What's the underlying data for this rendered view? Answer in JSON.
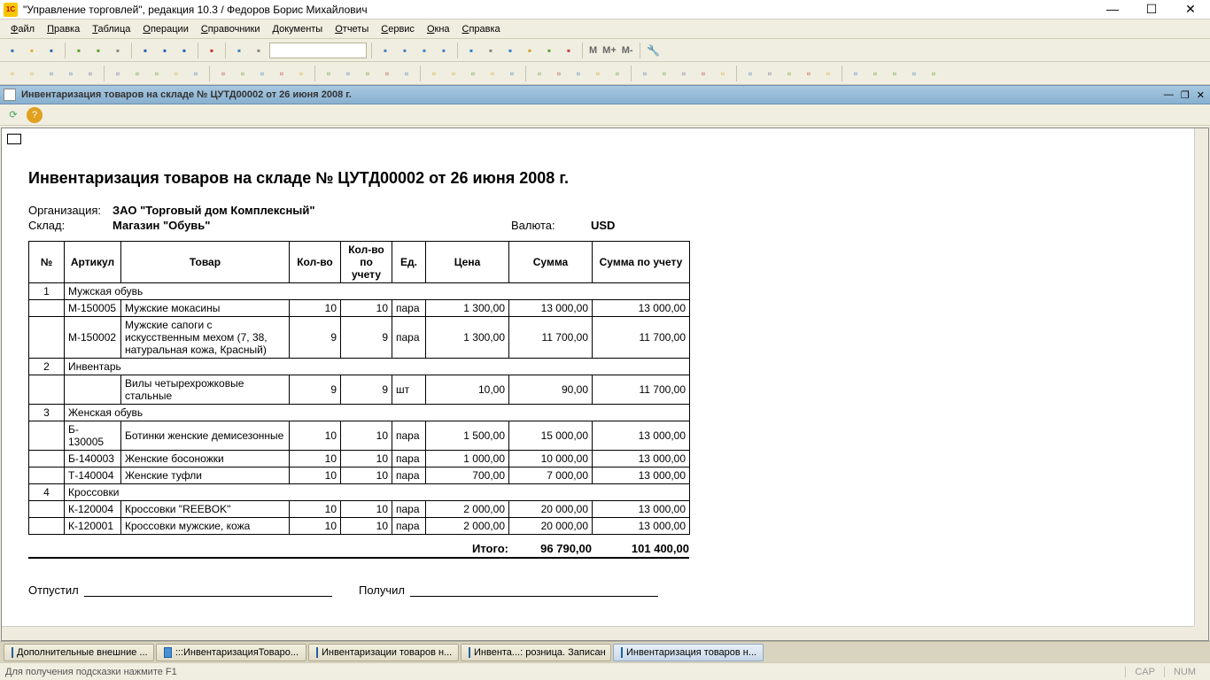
{
  "window": {
    "title": "\"Управление торговлей\", редакция 10.3 / Федоров Борис Михайлович",
    "app_icon_text": "1С"
  },
  "menu": [
    "Файл",
    "Правка",
    "Таблица",
    "Операции",
    "Справочники",
    "Документы",
    "Отчеты",
    "Сервис",
    "Окна",
    "Справка"
  ],
  "toolbar1_colors": [
    "#2c6fb5",
    "#e0b030",
    "#2c6fb5",
    "#888",
    "#5aa02a",
    "#5aa02a",
    "#888",
    "#c05030",
    "#2060c0",
    "#2060c0",
    "#2060c0",
    "#888",
    "#c03030",
    "#888",
    "#4080c0",
    "#888"
  ],
  "toolbar1_right_colors": [
    "#3080d0",
    "#888",
    "#3080d0",
    "#d0a020",
    "#60a030",
    "#c04040"
  ],
  "toolbar1_text": [
    "M",
    "M+",
    "M-"
  ],
  "toolbar2_colors": [
    "#d0b030",
    "#d0b030",
    "#4080c0",
    "#4080c0",
    "#8060a0",
    "#8060a0",
    "#60a030",
    "#60a030",
    "#d0b030",
    "#4080c0",
    "#c04040",
    "#60a030",
    "#4080c0",
    "#c04040",
    "#d0b030",
    "#60a030",
    "#4080c0",
    "#60a030",
    "#c04040",
    "#4080c0",
    "#d0b030",
    "#d0b030",
    "#60a030",
    "#d0b030",
    "#4080c0",
    "#60a030",
    "#c04040",
    "#4080c0",
    "#d0b030",
    "#60a030",
    "#4080c0",
    "#60a030",
    "#8060a0",
    "#c04040",
    "#d0b030",
    "#4080c0",
    "#8060a0",
    "#60a030",
    "#c04040",
    "#d0b030",
    "#4080c0",
    "#60a030",
    "#60a030",
    "#4080c0",
    "#60a030"
  ],
  "doc_tab": {
    "title": "Инвентаризация товаров на складе № ЦУТД00002 от 26 июня 2008 г."
  },
  "mini_toolbar": {
    "btn1_color": "#40a060",
    "btn2_color": "#e0a020"
  },
  "report": {
    "title": "Инвентаризация товаров на складе № ЦУТД00002 от 26 июня 2008 г.",
    "org_label": "Организация:",
    "org_value": "ЗАО \"Торговый дом Комплексный\"",
    "warehouse_label": "Склад:",
    "warehouse_value": "Магазин \"Обувь\"",
    "currency_label": "Валюта:",
    "currency_value": "USD",
    "columns": [
      "№",
      "Артикул",
      "Товар",
      "Кол-во",
      "Кол-во по учету",
      "Ед.",
      "Цена",
      "Сумма",
      "Сумма по учету"
    ],
    "groups": [
      {
        "n": "1",
        "name": "Мужская обувь",
        "rows": [
          {
            "art": "М-150005",
            "good": "Мужские мокасины",
            "qty": "10",
            "qty2": "10",
            "unit": "пара",
            "price": "1 300,00",
            "sum": "13 000,00",
            "sum2": "13 000,00"
          },
          {
            "art": "М-150002",
            "good": "Мужские сапоги с искусственным мехом (7, 38, натуральная кожа, Красный)",
            "qty": "9",
            "qty2": "9",
            "unit": "пара",
            "price": "1 300,00",
            "sum": "11 700,00",
            "sum2": "11 700,00"
          }
        ]
      },
      {
        "n": "2",
        "name": "Инвентарь",
        "rows": [
          {
            "art": "",
            "good": "Вилы четырехрожковые стальные",
            "qty": "9",
            "qty2": "9",
            "unit": "шт",
            "price": "10,00",
            "sum": "90,00",
            "sum2": "11 700,00"
          }
        ]
      },
      {
        "n": "3",
        "name": "Женская обувь",
        "rows": [
          {
            "art": "Б- 130005",
            "good": "Ботинки женские демисезонные",
            "qty": "10",
            "qty2": "10",
            "unit": "пара",
            "price": "1 500,00",
            "sum": "15 000,00",
            "sum2": "13 000,00"
          },
          {
            "art": "Б-140003",
            "good": "Женские босоножки",
            "qty": "10",
            "qty2": "10",
            "unit": "пара",
            "price": "1 000,00",
            "sum": "10 000,00",
            "sum2": "13 000,00"
          },
          {
            "art": "Т-140004",
            "good": "Женские туфли",
            "qty": "10",
            "qty2": "10",
            "unit": "пара",
            "price": "700,00",
            "sum": "7 000,00",
            "sum2": "13 000,00"
          }
        ]
      },
      {
        "n": "4",
        "name": "Кроссовки",
        "rows": [
          {
            "art": "К-120004",
            "good": "Кроссовки \"REEBOK\"",
            "qty": "10",
            "qty2": "10",
            "unit": "пара",
            "price": "2 000,00",
            "sum": "20 000,00",
            "sum2": "13 000,00"
          },
          {
            "art": "К-120001",
            "good": "Кроссовки мужские, кожа",
            "qty": "10",
            "qty2": "10",
            "unit": "пара",
            "price": "2 000,00",
            "sum": "20 000,00",
            "sum2": "13 000,00"
          }
        ]
      }
    ],
    "total_label": "Итого:",
    "total_sum": "96 790,00",
    "total_sum2": "101 400,00",
    "sig_released": "Отпустил",
    "sig_received": "Получил"
  },
  "taskbar": [
    {
      "label": "Дополнительные внешние ...",
      "active": false
    },
    {
      "label": ":::ИнвентаризацияТоваро...",
      "active": false
    },
    {
      "label": "Инвентаризации товаров н...",
      "active": false
    },
    {
      "label": "Инвента...: розница. Записан",
      "active": false
    },
    {
      "label": "Инвентаризация товаров н...",
      "active": true
    }
  ],
  "status": {
    "hint": "Для получения подсказки нажмите F1",
    "cap": "CAP",
    "num": "NUM"
  }
}
